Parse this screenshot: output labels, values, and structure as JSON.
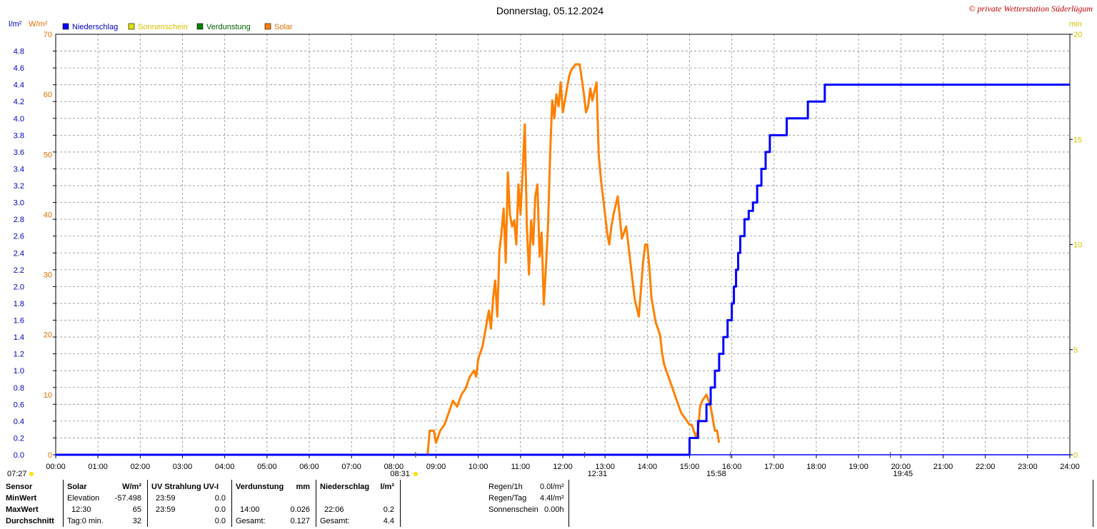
{
  "title": "Donnerstag, 05.12.2024",
  "copyright": "© private Wetterstation Süderlügum",
  "legend": [
    {
      "label": "Niederschlag",
      "color": "#0000ff",
      "text_color": "#0000c0"
    },
    {
      "label": "Sonnenschein",
      "color": "#e0e000",
      "text_color": "#d8c000"
    },
    {
      "label": "Verdunstung",
      "color": "#008000",
      "text_color": "#006000"
    },
    {
      "label": "Solar",
      "color": "#ff8000",
      "text_color": "#e07000"
    }
  ],
  "axis_units": {
    "rain": "l/m²",
    "solar": "W/m²",
    "minutes": "min"
  },
  "time_markers": {
    "sunrise": "07:27",
    "sun_start": "08:31",
    "solar_noon": "12:31",
    "sun_end": "15:58",
    "sunset": "19:45"
  },
  "chart_data": {
    "type": "line",
    "x_unit": "hour of day",
    "xlim": [
      0,
      24
    ],
    "x_ticks": [
      "00:00",
      "01:00",
      "02:00",
      "03:00",
      "04:00",
      "05:00",
      "06:00",
      "07:00",
      "08:00",
      "09:00",
      "10:00",
      "11:00",
      "12:00",
      "13:00",
      "14:00",
      "15:00",
      "16:00",
      "17:00",
      "18:00",
      "19:00",
      "20:00",
      "21:00",
      "22:00",
      "23:00",
      "24:00"
    ],
    "y_left_rain": {
      "label": "l/m²",
      "ylim": [
        0,
        5
      ],
      "ticks": [
        "0.0",
        "0.2",
        "0.4",
        "0.6",
        "0.8",
        "1.0",
        "1.2",
        "1.4",
        "1.6",
        "1.8",
        "2.0",
        "2.2",
        "2.4",
        "2.6",
        "2.8",
        "3.0",
        "3.2",
        "3.4",
        "3.6",
        "3.8",
        "4.0",
        "4.2",
        "4.4",
        "4.6",
        "4.8"
      ]
    },
    "y_left_solar": {
      "label": "W/m²",
      "ylim": [
        0,
        70
      ],
      "ticks": [
        "0",
        "10",
        "20",
        "30",
        "40",
        "50",
        "60",
        "70"
      ]
    },
    "y_right_minutes": {
      "label": "min",
      "ylim": [
        0,
        20
      ],
      "ticks": [
        "0",
        "5",
        "10",
        "15",
        "20"
      ]
    },
    "grid": true,
    "series": [
      {
        "name": "Solar",
        "color": "#ff8000",
        "axis": "solar",
        "x": [
          8.8,
          8.85,
          8.95,
          9.0,
          9.1,
          9.2,
          9.3,
          9.4,
          9.5,
          9.6,
          9.7,
          9.8,
          9.9,
          9.95,
          10.0,
          10.05,
          10.1,
          10.15,
          10.2,
          10.25,
          10.3,
          10.35,
          10.4,
          10.45,
          10.5,
          10.55,
          10.6,
          10.65,
          10.7,
          10.75,
          10.8,
          10.85,
          10.9,
          10.95,
          11.0,
          11.05,
          11.1,
          11.15,
          11.2,
          11.25,
          11.3,
          11.35,
          11.4,
          11.45,
          11.5,
          11.55,
          11.6,
          11.65,
          11.7,
          11.75,
          11.8,
          11.85,
          11.9,
          11.95,
          12.0,
          12.05,
          12.1,
          12.15,
          12.2,
          12.3,
          12.4,
          12.5,
          12.55,
          12.6,
          12.65,
          12.7,
          12.8,
          12.85,
          12.9,
          12.95,
          13.0,
          13.05,
          13.1,
          13.15,
          13.2,
          13.3,
          13.4,
          13.5,
          13.6,
          13.7,
          13.8,
          13.9,
          13.95,
          14.0,
          14.05,
          14.1,
          14.2,
          14.3,
          14.35,
          14.4,
          14.5,
          14.6,
          14.7,
          14.8,
          14.9,
          15.0,
          15.05,
          15.1,
          15.15,
          15.2,
          15.25,
          15.3,
          15.4,
          15.5,
          15.55,
          15.6,
          15.65,
          15.7
        ],
        "values": [
          0,
          4,
          4,
          2,
          4,
          5,
          7,
          9,
          8,
          10,
          11,
          13,
          14,
          13,
          16,
          17,
          18,
          20,
          22,
          24,
          21,
          26,
          29,
          23,
          34,
          37,
          41,
          32,
          47,
          40,
          38,
          39,
          35,
          45,
          40,
          47,
          55,
          38,
          30,
          39,
          35,
          43,
          45,
          33,
          37,
          25,
          31,
          38,
          50,
          59,
          56,
          60,
          58,
          62,
          57,
          59,
          61,
          63,
          64,
          65,
          65,
          60,
          57,
          58,
          61,
          59,
          62,
          50,
          46,
          43,
          40,
          37,
          35,
          38,
          40,
          43,
          36,
          38,
          32,
          26,
          23,
          32,
          35,
          35,
          31,
          26,
          22,
          20,
          17,
          15,
          13,
          11,
          9,
          7,
          6,
          5,
          5,
          4,
          3,
          4,
          8,
          9,
          10,
          8,
          6,
          4,
          4,
          2
        ]
      },
      {
        "name": "Niederschlag",
        "color": "#0000ff",
        "axis": "rain",
        "step": true,
        "x": [
          0,
          14.9,
          15.0,
          15.2,
          15.4,
          15.5,
          15.6,
          15.7,
          15.8,
          15.9,
          16.0,
          16.05,
          16.1,
          16.15,
          16.2,
          16.3,
          16.4,
          16.5,
          16.6,
          16.7,
          16.8,
          16.9,
          17.0,
          17.1,
          17.3,
          17.4,
          17.7,
          17.8,
          17.9,
          18.1,
          18.2,
          18.3,
          18.7,
          18.8,
          18.95,
          19.0,
          22.0,
          22.1,
          24
        ],
        "values": [
          0,
          0,
          0.2,
          0.4,
          0.6,
          0.8,
          1.0,
          1.2,
          1.4,
          1.6,
          1.8,
          2.0,
          2.2,
          2.4,
          2.6,
          2.8,
          2.9,
          3.0,
          3.2,
          3.4,
          3.6,
          3.8,
          3.8,
          3.8,
          4.0,
          4.0,
          4.0,
          4.2,
          4.2,
          4.2,
          4.4,
          4.4,
          4.4,
          4.4,
          4.4,
          4.4,
          4.4,
          4.4,
          4.4
        ]
      }
    ]
  },
  "table": {
    "rows": [
      "Sensor",
      "MinWert",
      "MaxWert",
      "Durchschnitt"
    ],
    "solar": {
      "header": "Solar",
      "unit": "W/m²",
      "min_label": "Elevation",
      "min_value": "-57.498",
      "max_label": "12:30",
      "max_value": "65",
      "avg_label": "Tag:0 min.",
      "avg_value": "32"
    },
    "uv": {
      "header": "UV Strahlung UV-I",
      "min_label": "23:59",
      "min_value": "0.0",
      "max_label": "23:59",
      "max_value": "0.0",
      "avg_value": "0.0"
    },
    "evap": {
      "header": "Verdunstung",
      "unit": "mm",
      "max_label": "14:00",
      "max_value": "0.026",
      "sum_label": "Gesamt:",
      "sum_value": "0.127"
    },
    "rain": {
      "header": "Niederschlag",
      "unit": "l/m²",
      "max_label": "22:06",
      "max_value": "0.2",
      "sum_label": "Gesamt:",
      "sum_value": "4.4"
    },
    "summary": [
      {
        "label": "Regen/1h",
        "value": "0.0l/m²"
      },
      {
        "label": "Regen/Tag",
        "value": "4.4l/m²"
      },
      {
        "label": "Sonnenschein",
        "value": "0.00h"
      }
    ]
  }
}
